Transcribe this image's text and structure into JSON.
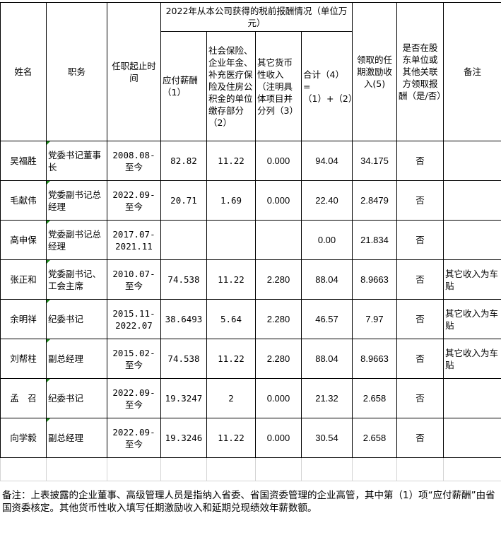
{
  "header": {
    "name": "姓名",
    "position": "职务",
    "term": "任职起止时间",
    "group_title": "2022年从本公司获得的税前报酬情况（单位万元）",
    "salary": "应付薪酬（1）",
    "insurance": "社会保险、企业年金、补充医疗保险及住房公积金的单位缴存部分（2）",
    "other_income": "其它货币性收入（注明具体项目并分列（3）",
    "total": "合计（4）=（1）+（2）+（3）",
    "incentive": "领取的任期激励收入(5)",
    "related_party": "是否在股东单位或其他关联方领取报酬（是/否）",
    "remark": "备注"
  },
  "rows": [
    {
      "name": "吴福胜",
      "position": "党委书记董事长",
      "term": "2008.08-至今",
      "salary": "82.82",
      "insurance": "11.22",
      "other": "0.000",
      "total": "94.04",
      "incentive": "34.175",
      "related": "否",
      "remark": ""
    },
    {
      "name": "毛献伟",
      "position": "党委副书记总经理",
      "term": "2022.09-至今",
      "salary": "20.71",
      "insurance": "1.69",
      "other": "0.000",
      "total": "22.40",
      "incentive": "2.8479",
      "related": "否",
      "remark": ""
    },
    {
      "name": "高申保",
      "position": "党委副书记总经理",
      "term": "2017.07-2021.11",
      "salary": "",
      "insurance": "",
      "other": "",
      "total": "0.00",
      "incentive": "21.834",
      "related": "否",
      "remark": ""
    },
    {
      "name": "张正和",
      "position": "党委副书记、工会主席",
      "term": "2010.07-至今",
      "salary": "74.538",
      "insurance": "11.22",
      "other": "2.280",
      "total": "88.04",
      "incentive": "8.9663",
      "related": "否",
      "remark": "其它收入为车贴"
    },
    {
      "name": "余明祥",
      "position": "纪委书记",
      "term": "2015.11-2022.07",
      "salary": "38.6493",
      "insurance": "5.64",
      "other": "2.280",
      "total": "46.57",
      "incentive": "7.97",
      "related": "否",
      "remark": "其它收入为车贴"
    },
    {
      "name": "刘帮柱",
      "position": "副总经理",
      "term": "2015.02-至今",
      "salary": "74.538",
      "insurance": "11.22",
      "other": "2.280",
      "total": "88.04",
      "incentive": "8.9663",
      "related": "否",
      "remark": "其它收入为车贴"
    },
    {
      "name": "孟　召",
      "position": "纪委书记",
      "term": "2022.09-至今",
      "salary": "19.3247",
      "insurance": "2",
      "other": "0.000",
      "total": "21.32",
      "incentive": "2.658",
      "related": "否",
      "remark": ""
    },
    {
      "name": "向学毅",
      "position": "副总经理",
      "term": "2022.09-至今",
      "salary": "19.3246",
      "insurance": "11.22",
      "other": "0.000",
      "total": "30.54",
      "incentive": "2.658",
      "related": "否",
      "remark": ""
    }
  ],
  "note": "备注：上表披露的企业董事、高级管理人员是指纳入省委、省国资委管理的企业高管，其中第（1）项“应付薪酬”由省国资委核定。其他货币性收入填写任期激励收入和延期兑现绩效年薪数额。"
}
